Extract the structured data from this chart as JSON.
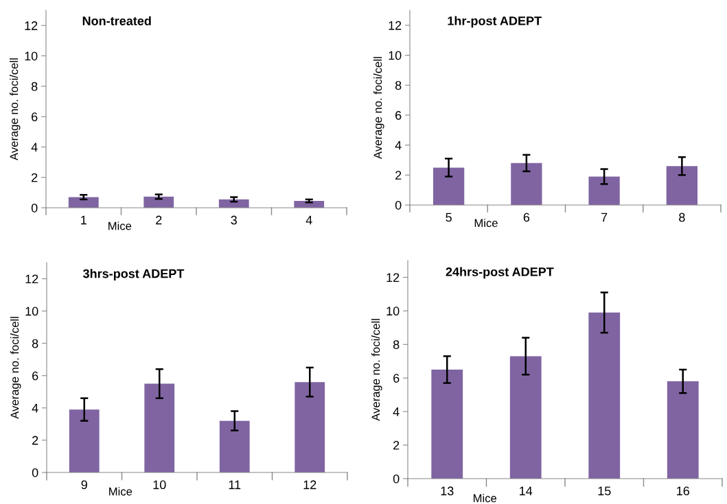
{
  "chart_data": [
    {
      "type": "bar",
      "title": "Non-treated",
      "xlabel": "Mice",
      "ylabel": "Average no. foci/cell",
      "categories": [
        "1",
        "2",
        "3",
        "4"
      ],
      "color": "#8064a2",
      "values": [
        0.7,
        0.73,
        0.55,
        0.45
      ],
      "errors": [
        0.15,
        0.15,
        0.15,
        0.1
      ],
      "ylim": [
        0,
        13
      ],
      "yticks": [
        0,
        2,
        4,
        6,
        8,
        10,
        12
      ],
      "grid": false
    },
    {
      "type": "bar",
      "title": "1hr-post ADEPT",
      "xlabel": "Mice",
      "ylabel": "Average no. foci/cell",
      "categories": [
        "5",
        "6",
        "7",
        "8"
      ],
      "color": "#8064a2",
      "values": [
        2.5,
        2.8,
        1.9,
        2.6
      ],
      "errors": [
        0.6,
        0.55,
        0.5,
        0.6
      ],
      "ylim": [
        0,
        13
      ],
      "yticks": [
        0,
        2,
        4,
        6,
        8,
        10,
        12
      ],
      "grid": false
    },
    {
      "type": "bar",
      "title": "3hrs-post ADEPT",
      "xlabel": "Mice",
      "ylabel": "Average no. foci/cell",
      "categories": [
        "9",
        "10",
        "11",
        "12"
      ],
      "color": "#8064a2",
      "values": [
        3.9,
        5.5,
        3.2,
        5.6
      ],
      "errors": [
        0.7,
        0.9,
        0.6,
        0.9
      ],
      "ylim": [
        0,
        13
      ],
      "yticks": [
        0,
        2,
        4,
        6,
        8,
        10,
        12
      ],
      "grid": false
    },
    {
      "type": "bar",
      "title": "24hrs-post ADEPT",
      "xlabel": "Mice",
      "ylabel": "Average no. foci/cell",
      "categories": [
        "13",
        "14",
        "15",
        "16"
      ],
      "color": "#8064a2",
      "values": [
        6.5,
        7.3,
        9.9,
        5.8
      ],
      "errors": [
        0.8,
        1.1,
        1.2,
        0.7
      ],
      "ylim": [
        0,
        13
      ],
      "yticks": [
        0,
        2,
        4,
        6,
        8,
        10,
        12
      ],
      "grid": false
    }
  ]
}
